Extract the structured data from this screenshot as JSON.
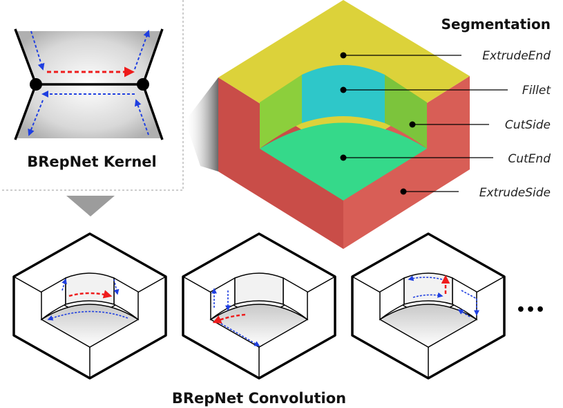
{
  "kernel": {
    "label": "BRepNet Kernel"
  },
  "segmentation": {
    "title": "Segmentation",
    "classes": [
      {
        "name": "ExtrudeEnd",
        "color": "#dcd23a"
      },
      {
        "name": "Fillet",
        "color": "#2ec7c9"
      },
      {
        "name": "CutSide",
        "color": "#8ccf3c"
      },
      {
        "name": "CutEnd",
        "color": "#35d98a"
      },
      {
        "name": "ExtrudeSide",
        "color": "#d25a52"
      }
    ]
  },
  "convolution": {
    "label": "BRepNet Convolution",
    "ellipsis": "•••"
  },
  "colors": {
    "red_arrow": "#ee1c1c",
    "blue_arrow": "#1f3fe0",
    "outline": "#000000"
  },
  "icons": {
    "step_arrow": "down-triangle-icon"
  }
}
